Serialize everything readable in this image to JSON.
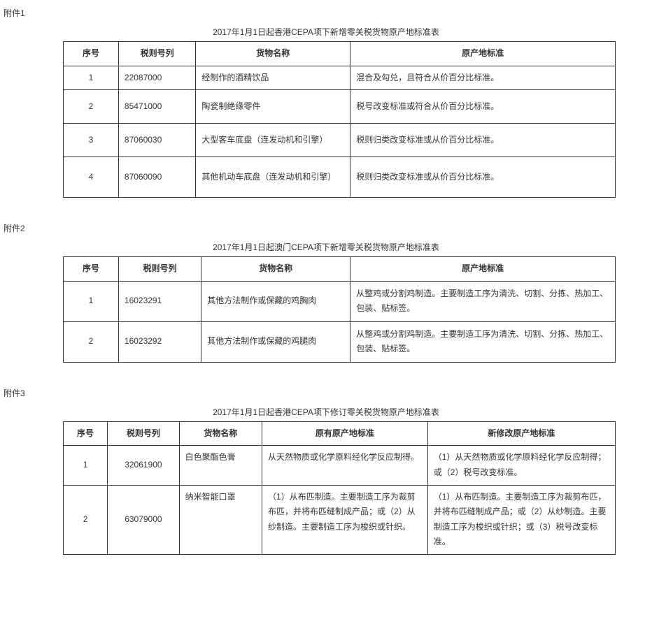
{
  "attachment1": {
    "label": "附件1",
    "title": "2017年1月1日起香港CEPA项下新增零关税货物原产地标准表",
    "columns": [
      "序号",
      "税则号列",
      "货物名称",
      "原产地标准"
    ],
    "rows": [
      {
        "no": "1",
        "code": "22087000",
        "name": "经制作的酒精饮品",
        "standard": "混合及勾兑，且符合从价百分比标准。"
      },
      {
        "no": "2",
        "code": "85471000",
        "name": "陶瓷制绝缘零件",
        "standard": "税号改变标准或符合从价百分比标准。"
      },
      {
        "no": "3",
        "code": "87060030",
        "name": "大型客车底盘（连发动机和引擎）",
        "standard": "税则归类改变标准或从价百分比标准。"
      },
      {
        "no": "4",
        "code": "87060090",
        "name": "其他机动车底盘（连发动机和引擎）",
        "standard": "税则归类改变标准或从价百分比标准。"
      }
    ]
  },
  "attachment2": {
    "label": "附件2",
    "title": "2017年1月1日起澳门CEPA项下新增零关税货物原产地标准表",
    "columns": [
      "序号",
      "税则号列",
      "货物名称",
      "原产地标准"
    ],
    "rows": [
      {
        "no": "1",
        "code": "16023291",
        "name": "其他方法制作或保藏的鸡胸肉",
        "standard": "从整鸡或分割鸡制造。主要制造工序为清洗、切割、分拣、热加工、包装、贴标签。"
      },
      {
        "no": "2",
        "code": "16023292",
        "name": "其他方法制作或保藏的鸡腿肉",
        "standard": "从整鸡或分割鸡制造。主要制造工序为清洗、切割、分拣、热加工、包装、贴标签。"
      }
    ]
  },
  "attachment3": {
    "label": "附件3",
    "title": "2017年1月1日起香港CEPA项下修订零关税货物原产地标准表",
    "columns": [
      "序号",
      "税则号列",
      "货物名称",
      "原有原产地标准",
      "新修改原产地标准"
    ],
    "rows": [
      {
        "no": "1",
        "code": "32061900",
        "name": "白色聚酯色膏",
        "old_standard": "从天然物质或化学原料经化学反应制得。",
        "new_standard": "（1）从天然物质或化学原料经化学反应制得；或（2）税号改变标准。"
      },
      {
        "no": "2",
        "code": "63079000",
        "name": "纳米智能口罩",
        "old_standard": "（1）从布匹制造。主要制造工序为裁剪布匹，并将布匹缝制成产品；或（2）从纱制造。主要制造工序为梭织或针织。",
        "new_standard": "（1）从布匹制造。主要制造工序为裁剪布匹，并将布匹缝制成产品；或（2）从纱制造。主要制造工序为梭织或针织；或（3）税号改变标准。"
      }
    ]
  }
}
